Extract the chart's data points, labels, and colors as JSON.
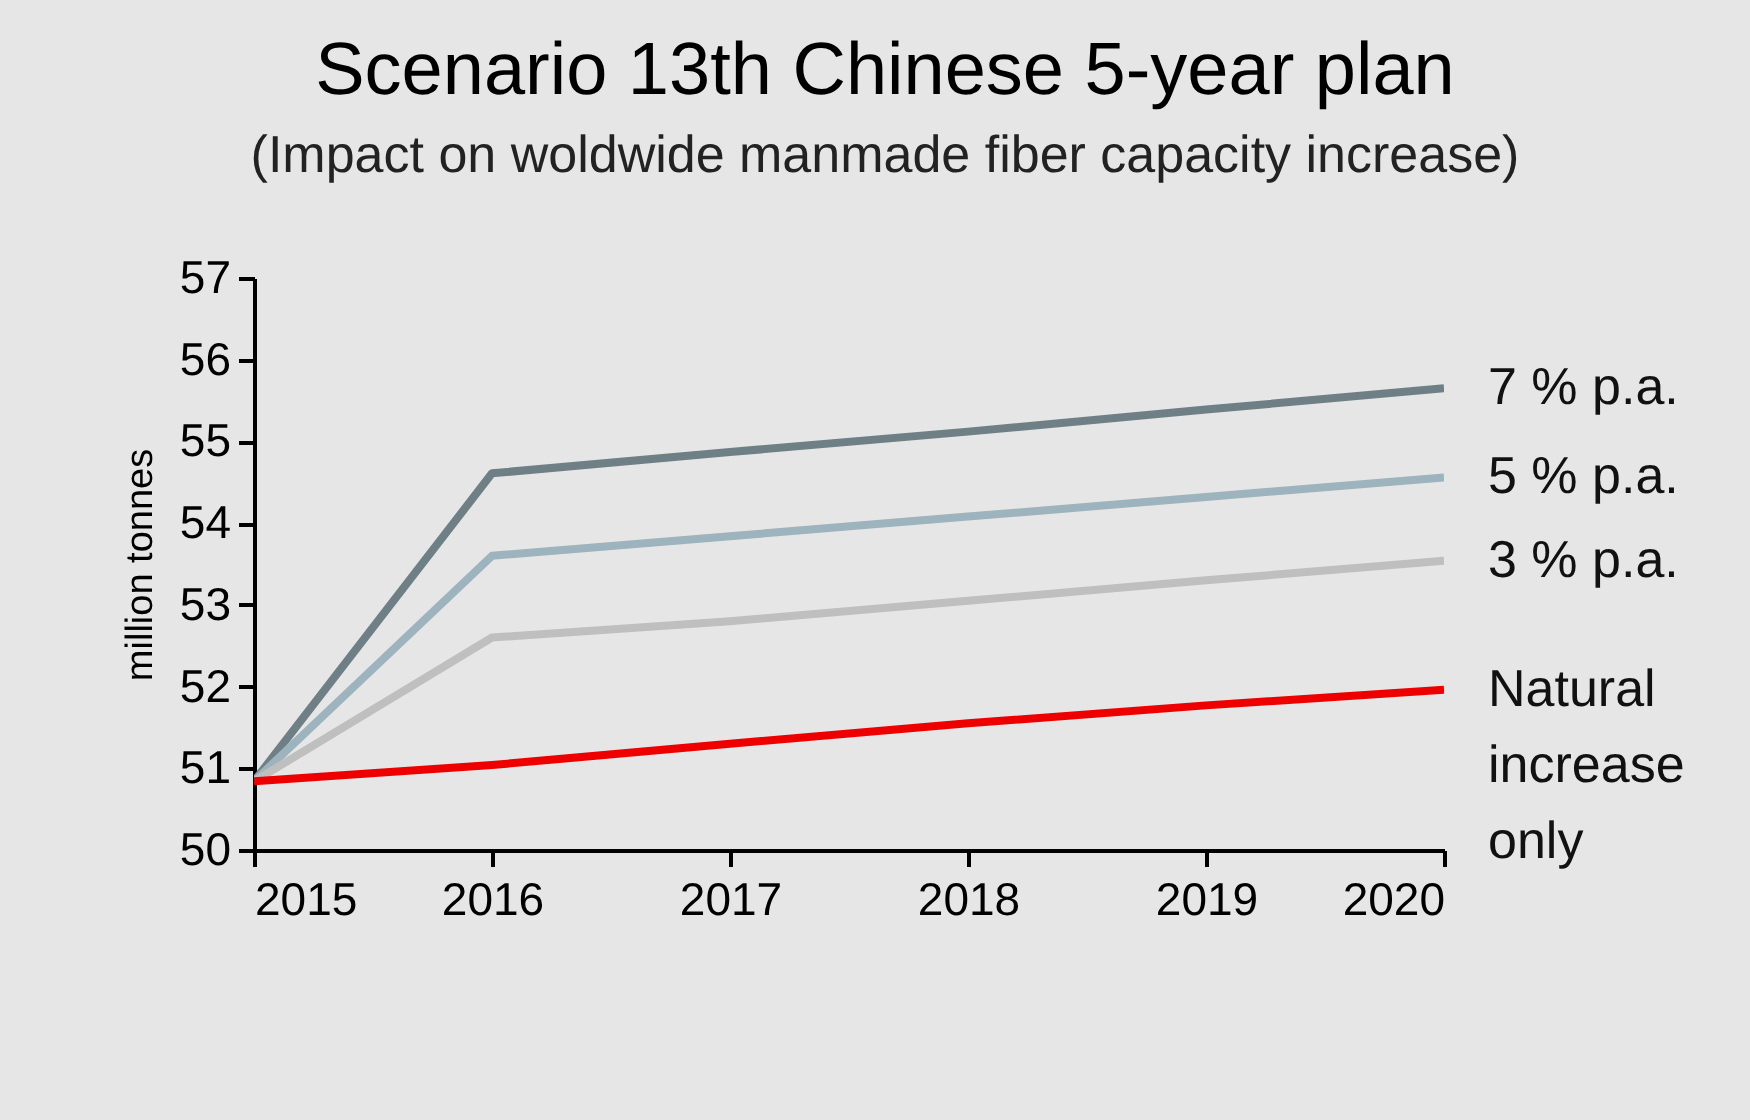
{
  "chart_data": {
    "type": "line",
    "title": "Scenario 13th Chinese 5-year plan",
    "subtitle": "(Impact on woldwide manmade fiber capacity increase)",
    "ylabel": "million tonnes",
    "x": [
      2015,
      2016,
      2017,
      2018,
      2019,
      2020
    ],
    "xlim": [
      2015,
      2020
    ],
    "xticks": [
      2015,
      2016,
      2017,
      2018,
      2019,
      2020
    ],
    "ylim": [
      50,
      57
    ],
    "yticks": [
      50,
      51,
      52,
      53,
      54,
      55,
      56,
      57
    ],
    "grid": false,
    "legend": false,
    "series": [
      {
        "name": "7 % p.a.",
        "color": "#6f7f86",
        "values": [
          50.84,
          54.61,
          54.87,
          55.12,
          55.39,
          55.65
        ]
      },
      {
        "name": "5 % p.a.",
        "color": "#9db3bd",
        "values": [
          50.84,
          53.6,
          53.84,
          54.08,
          54.32,
          54.56
        ]
      },
      {
        "name": "3 % p.a.",
        "color": "#bfbfbf",
        "values": [
          50.84,
          52.6,
          52.8,
          53.05,
          53.3,
          53.54
        ]
      },
      {
        "name": "Natural increase only",
        "color": "#ee0000",
        "values": [
          50.84,
          51.04,
          51.3,
          51.55,
          51.77,
          51.96
        ]
      }
    ]
  }
}
